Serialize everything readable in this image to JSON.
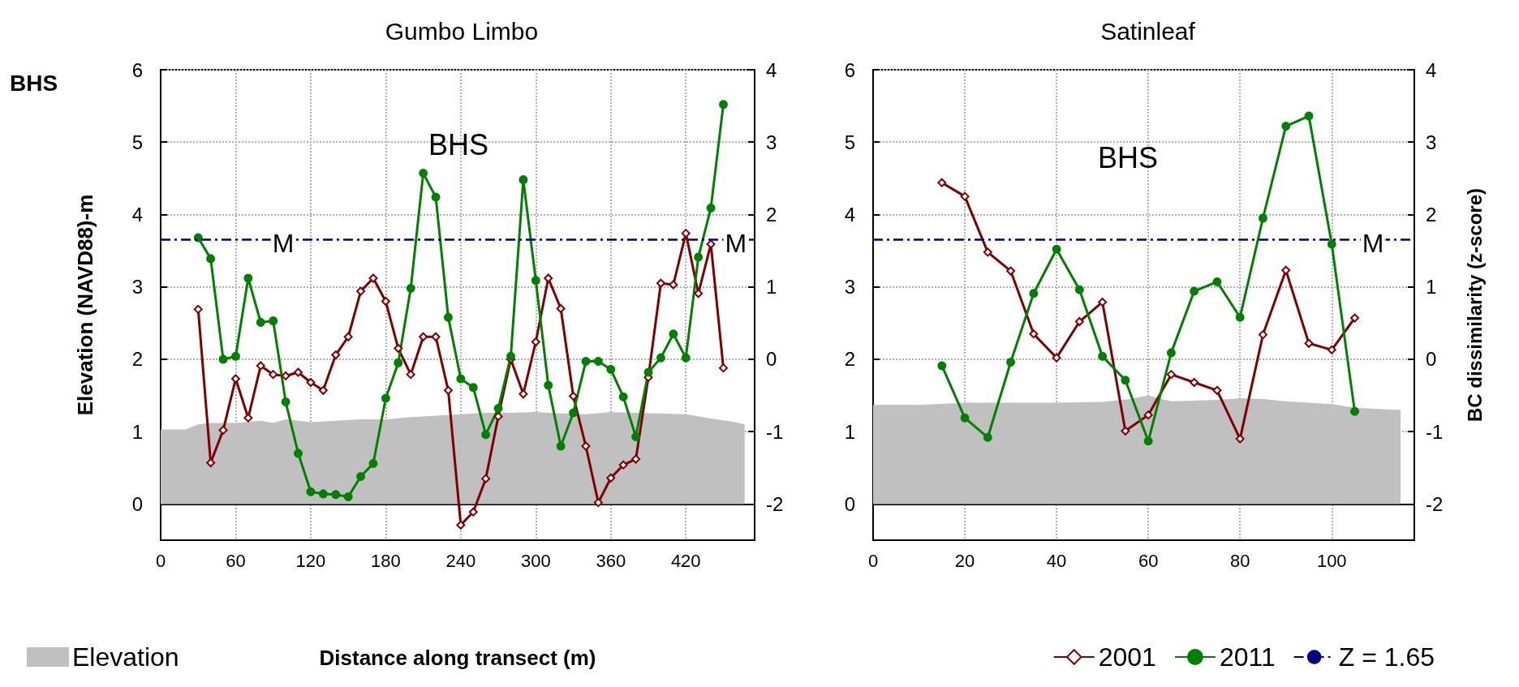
{
  "chart_data": [
    {
      "type": "line",
      "title": "Gumbo Limbo",
      "xlabel": "Distance along transect (m)",
      "ylabel": "Elevation (NAVD88)-m",
      "annotations": [
        "BHS",
        "BHS",
        {
          "text": "M",
          "x": 98,
          "y": 3.6
        },
        {
          "text": "M",
          "x": 460,
          "y": 3.6
        }
      ],
      "xlim": [
        0,
        475
      ],
      "xticks": [
        0,
        60,
        120,
        180,
        240,
        300,
        360,
        420
      ],
      "ylim": [
        -0.5,
        6
      ],
      "yticks": [
        0,
        1,
        2,
        3,
        4,
        5,
        6
      ],
      "y2lim": [
        -2.5,
        4
      ],
      "y2ticks": [
        -2,
        -1,
        0,
        1,
        2,
        3,
        4
      ],
      "grid": true,
      "legend": "bottom left",
      "series": [
        {
          "name": "Elevation",
          "type": "area",
          "axis": "y",
          "color": "#c0c0c0",
          "marker": "none",
          "x": [
            0,
            20,
            30,
            40,
            60,
            80,
            90,
            100,
            120,
            140,
            160,
            180,
            200,
            220,
            240,
            260,
            280,
            300,
            320,
            340,
            360,
            380,
            400,
            420,
            440,
            460,
            467
          ],
          "values": [
            1.03,
            1.03,
            1.1,
            1.12,
            1.12,
            1.15,
            1.12,
            1.17,
            1.13,
            1.15,
            1.17,
            1.17,
            1.2,
            1.22,
            1.24,
            1.26,
            1.26,
            1.27,
            1.25,
            1.24,
            1.27,
            1.26,
            1.25,
            1.24,
            1.18,
            1.13,
            1.1
          ]
        },
        {
          "axis": "y2",
          "color": "#800000",
          "marker": "diamond",
          "x": [
            30,
            40,
            50,
            60,
            70,
            80,
            90,
            100,
            110,
            120,
            130,
            140,
            150,
            160,
            170,
            180,
            190,
            200,
            210,
            220,
            230,
            240,
            250,
            260,
            270,
            280,
            290,
            300,
            310,
            320,
            330,
            340,
            350,
            360,
            370,
            380,
            390,
            400,
            410,
            420,
            430,
            440,
            450
          ],
          "values": [
            0.69,
            -1.43,
            -0.98,
            -0.27,
            -0.81,
            -0.09,
            -0.21,
            -0.23,
            -0.18,
            -0.32,
            -0.43,
            0.06,
            0.31,
            0.94,
            1.12,
            0.8,
            0.15,
            -0.21,
            0.31,
            0.31,
            -0.43,
            -2.29,
            -2.11,
            -1.65,
            -0.79,
            0.0,
            -0.48,
            0.24,
            1.12,
            0.7,
            -0.51,
            -1.2,
            -1.98,
            -1.64,
            -1.46,
            -1.38,
            -0.25,
            1.05,
            1.03,
            1.74,
            0.91,
            1.59,
            -0.12
          ]
        },
        {
          "axis": "y2",
          "color": "#008000",
          "marker": "circle",
          "x": [
            30,
            40,
            50,
            60,
            70,
            80,
            90,
            100,
            110,
            120,
            130,
            140,
            150,
            160,
            170,
            180,
            190,
            200,
            210,
            220,
            230,
            240,
            250,
            260,
            270,
            280,
            290,
            300,
            310,
            320,
            330,
            340,
            350,
            360,
            370,
            380,
            390,
            400,
            410,
            420,
            430,
            440,
            450
          ],
          "values": [
            1.68,
            1.39,
            0.0,
            0.04,
            1.12,
            0.51,
            0.53,
            -0.59,
            -1.3,
            -1.83,
            -1.86,
            -1.87,
            -1.9,
            -1.62,
            -1.44,
            -0.54,
            -0.05,
            0.98,
            2.57,
            2.24,
            0.58,
            -0.27,
            -0.39,
            -1.04,
            -0.68,
            0.04,
            2.48,
            1.09,
            -0.36,
            -1.2,
            -0.74,
            -0.03,
            -0.03,
            -0.14,
            -0.52,
            -1.07,
            -0.18,
            0.02,
            0.35,
            0.02,
            1.41,
            2.09,
            3.52
          ]
        }
      ],
      "ref_lines": [
        {
          "axis": "y2",
          "value": 1.65,
          "color": "#000080",
          "line_style": "dashed"
        }
      ]
    },
    {
      "type": "line",
      "title": "Satinleaf",
      "y2label": "BC dissimilarity (z-score)",
      "annotations": [
        "BHS",
        {
          "text": "M",
          "x": 109,
          "y": 3.6
        }
      ],
      "xlim": [
        0,
        118
      ],
      "xticks": [
        0,
        20,
        40,
        60,
        80,
        100
      ],
      "ylim": [
        -0.5,
        6
      ],
      "yticks": [
        0,
        1,
        2,
        3,
        4,
        5,
        6
      ],
      "y2lim": [
        -2.5,
        4
      ],
      "y2ticks": [
        -2,
        -1,
        0,
        1,
        2,
        3,
        4
      ],
      "grid": true,
      "legend": "bottom right",
      "series": [
        {
          "type": "area",
          "axis": "y",
          "color": "#c0c0c0",
          "marker": "none",
          "x": [
            0,
            10,
            20,
            40,
            50,
            56,
            60,
            63,
            65,
            75,
            80,
            85,
            90,
            100,
            105,
            115
          ],
          "values": [
            1.37,
            1.37,
            1.4,
            1.4,
            1.41,
            1.45,
            1.5,
            1.45,
            1.42,
            1.44,
            1.46,
            1.45,
            1.42,
            1.38,
            1.33,
            1.3
          ]
        },
        {
          "name": "2001",
          "axis": "y2",
          "color": "#800000",
          "marker": "diamond",
          "x": [
            15,
            20,
            25,
            30,
            35,
            40,
            45,
            50,
            55,
            60,
            65,
            70,
            75,
            80,
            85,
            90,
            95,
            100,
            105
          ],
          "values": [
            2.44,
            2.25,
            1.48,
            1.22,
            0.35,
            0.02,
            0.52,
            0.79,
            -0.99,
            -0.77,
            -0.21,
            -0.32,
            -0.43,
            -1.1,
            0.34,
            1.23,
            0.22,
            0.13,
            0.57
          ]
        },
        {
          "name": "2011",
          "axis": "y2",
          "color": "#008000",
          "marker": "circle",
          "x": [
            15,
            20,
            25,
            30,
            35,
            40,
            45,
            50,
            55,
            60,
            65,
            70,
            75,
            80,
            85,
            90,
            95,
            100,
            105
          ],
          "values": [
            -0.09,
            -0.81,
            -1.08,
            -0.04,
            0.91,
            1.52,
            0.96,
            0.04,
            -0.29,
            -1.13,
            0.09,
            0.94,
            1.07,
            0.58,
            1.95,
            3.22,
            3.36,
            1.59,
            -0.72
          ]
        }
      ],
      "ref_lines": [
        {
          "axis": "y2",
          "value": 1.65,
          "label": "Z = 1.65",
          "color": "#000080",
          "line_style": "dashed"
        }
      ]
    }
  ]
}
